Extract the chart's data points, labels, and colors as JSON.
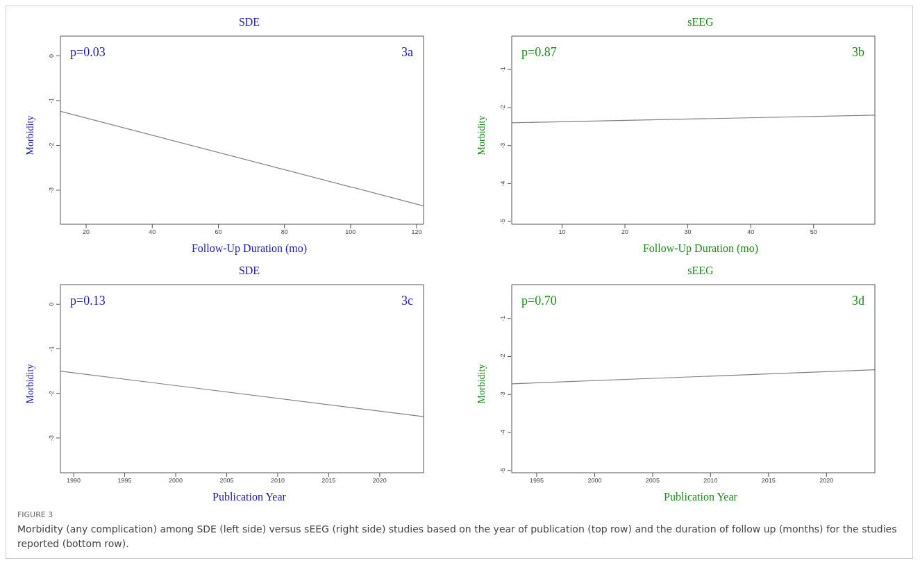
{
  "chart_data": [
    {
      "type": "line",
      "title": "SDE",
      "xlabel": "Follow-Up Duration (mo)",
      "ylabel": "Morbidity",
      "annotations": [
        "p=0.03",
        "3a"
      ],
      "series": [
        {
          "color": "#808080",
          "x": [
            12.2,
            122.1
          ],
          "values": [
            -1.24,
            -3.35
          ]
        }
      ],
      "xlim": [
        12.2,
        122.1
      ],
      "xticks": [
        20,
        40,
        60,
        80,
        100,
        120
      ],
      "ylim": [
        -3.76,
        0.44
      ],
      "yticks": [
        0,
        -1,
        -2,
        -3
      ],
      "grid": false,
      "legend": false
    },
    {
      "type": "line",
      "title": "sEEG",
      "xlabel": "Follow-Up Duration (mo)",
      "ylabel": "Morbidity",
      "annotations": [
        "p=0.87",
        "3b"
      ],
      "series": [
        {
          "color": "#808080",
          "x": [
            2.0,
            59.75
          ],
          "values": [
            -2.4,
            -2.2
          ]
        }
      ],
      "xlim": [
        2.0,
        59.75
      ],
      "xticks": [
        10,
        20,
        30,
        40,
        50
      ],
      "ylim": [
        -5.07,
        -0.12
      ],
      "yticks": [
        -1,
        -2,
        -3,
        -4,
        -5
      ],
      "grid": false,
      "legend": false
    },
    {
      "type": "line",
      "title": "SDE",
      "xlabel": "Publication Year",
      "ylabel": "Morbidity",
      "annotations": [
        "p=0.13",
        "3c"
      ],
      "series": [
        {
          "color": "#808080",
          "x": [
            1988.7,
            2024.3
          ],
          "values": [
            -1.5,
            -2.52
          ]
        }
      ],
      "xlim": [
        1988.7,
        2024.3
      ],
      "xticks": [
        1990,
        1995,
        2000,
        2005,
        2010,
        2015,
        2020
      ],
      "ylim": [
        -3.78,
        0.44
      ],
      "yticks": [
        0,
        -1,
        -2,
        -3
      ],
      "grid": false,
      "legend": false
    },
    {
      "type": "line",
      "title": "sEEG",
      "xlabel": "Publication Year",
      "ylabel": "Morbidity",
      "annotations": [
        "p=0.70",
        "3d"
      ],
      "series": [
        {
          "color": "#808080",
          "x": [
            1992.85,
            2024.17
          ],
          "values": [
            -2.72,
            -2.35
          ]
        }
      ],
      "xlim": [
        1992.85,
        2024.17
      ],
      "xticks": [
        1995,
        2000,
        2005,
        2010,
        2015,
        2020
      ],
      "ylim": [
        -5.06,
        -0.11
      ],
      "yticks": [
        -1,
        -2,
        -3,
        -4,
        -5
      ],
      "grid": false,
      "legend": false
    },
    {
      "type": "other",
      "title": "FIGURE 3",
      "annotations": [
        "Morbidity (any complication) among SDE (left side) versus sEEG (right side) studies based on the year of publication (top row) and the duration of follow up (months) for the studies reported (bottom row)."
      ]
    }
  ]
}
